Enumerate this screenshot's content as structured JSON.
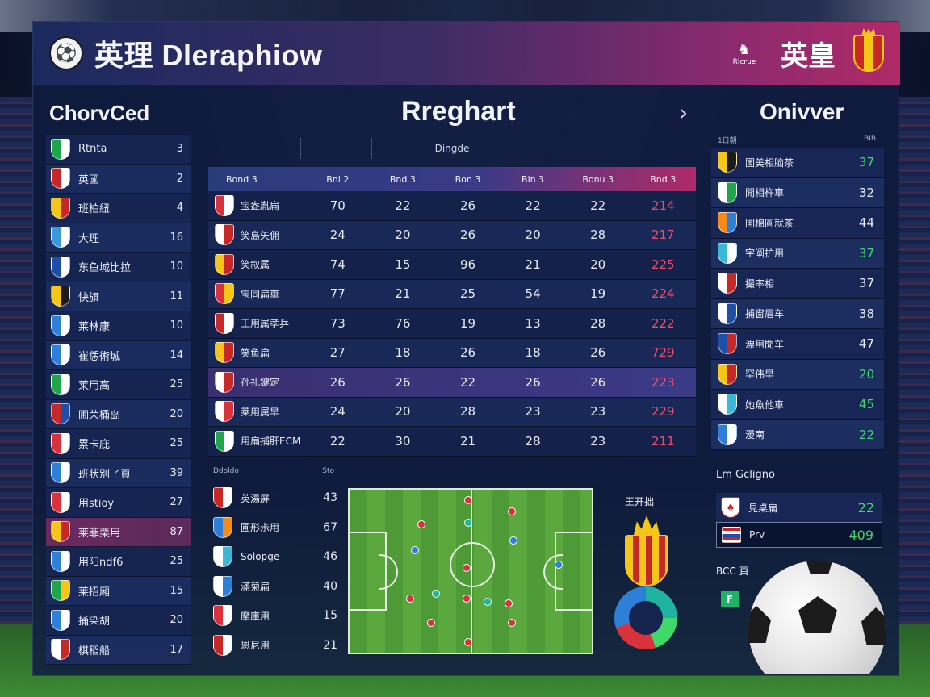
{
  "header": {
    "title": "英理 Dleraphiow",
    "right_badge": "Rlcrue",
    "right_title": "英皇"
  },
  "sections": {
    "left_title": "ChorvCed",
    "center_title": "Rreghart",
    "right_title": "Onivver"
  },
  "left_list": [
    {
      "name": "Rtnta",
      "value": "3",
      "crest": [
        "#1fa64a",
        "#ffffff"
      ]
    },
    {
      "name": "英國",
      "value": "2",
      "crest": [
        "#c62828",
        "#ffffff"
      ]
    },
    {
      "name": "班柏紐",
      "value": "4",
      "crest": [
        "#f5c518",
        "#c62828"
      ]
    },
    {
      "name": "大理",
      "value": "16",
      "crest": [
        "#3a9ad8",
        "#ffffff"
      ]
    },
    {
      "name": "东鱼城比拉",
      "value": "10",
      "crest": [
        "#1d4fa8",
        "#ffffff"
      ]
    },
    {
      "name": "快旗",
      "value": "11",
      "crest": [
        "#f5c518",
        "#1b1b1b"
      ]
    },
    {
      "name": "莱林康",
      "value": "10",
      "crest": [
        "#2d7fd8",
        "#ffffff"
      ]
    },
    {
      "name": "崔恁術城",
      "value": "14",
      "crest": [
        "#2d7fd8",
        "#ffffff"
      ]
    },
    {
      "name": "莱用高",
      "value": "25",
      "crest": [
        "#1fa64a",
        "#ffffff"
      ]
    },
    {
      "name": "圃荣桶岛",
      "value": "20",
      "crest": [
        "#c62828",
        "#1d4fa8"
      ]
    },
    {
      "name": "累卡庇",
      "value": "25",
      "crest": [
        "#d8323c",
        "#ffffff"
      ]
    },
    {
      "name": "班状別了頁",
      "value": "39",
      "crest": [
        "#2d7fd8",
        "#ffffff"
      ]
    },
    {
      "name": "用stioy",
      "value": "27",
      "crest": [
        "#d8323c",
        "#ffffff"
      ]
    },
    {
      "name": "莱菲栗用",
      "value": "87",
      "crest": [
        "#f5c518",
        "#c62828"
      ]
    },
    {
      "name": "用阳ndf6",
      "value": "25",
      "crest": [
        "#2d7fd8",
        "#ffffff"
      ]
    },
    {
      "name": "莱招厢",
      "value": "15",
      "crest": [
        "#1fa64a",
        "#f5c518"
      ]
    },
    {
      "name": "捅染胡",
      "value": "20",
      "crest": [
        "#2d7fd8",
        "#ffffff"
      ]
    },
    {
      "name": "棋稻船",
      "value": "17",
      "crest": [
        "#ffffff",
        "#c62828"
      ]
    }
  ],
  "center_table": {
    "sub_header": "Dingde",
    "columns": [
      "Bond 3",
      "Bnl 2",
      "Bnd 3",
      "Bon 3",
      "Bin 3",
      "Bonu 3",
      "Bnd 3"
    ],
    "rows": [
      {
        "team": "宝盎胤扁",
        "cells": [
          "70",
          "22",
          "26",
          "22",
          "22",
          "214"
        ],
        "crest": [
          "#d8323c",
          "#ffffff"
        ]
      },
      {
        "team": "笑島矢佣",
        "cells": [
          "24",
          "20",
          "26",
          "20",
          "28",
          "217"
        ],
        "crest": [
          "#ffffff",
          "#c62828"
        ]
      },
      {
        "team": "笑叙属",
        "cells": [
          "74",
          "15",
          "96",
          "21",
          "20",
          "225"
        ],
        "crest": [
          "#f5c518",
          "#c62828"
        ]
      },
      {
        "team": "宝同扁車",
        "cells": [
          "77",
          "21",
          "25",
          "54",
          "19",
          "224"
        ],
        "crest": [
          "#d8323c",
          "#f5c518"
        ]
      },
      {
        "team": "王用属孝乒",
        "cells": [
          "73",
          "76",
          "19",
          "13",
          "28",
          "222"
        ],
        "crest": [
          "#c62828",
          "#ffffff"
        ]
      },
      {
        "team": "笑鱼扁",
        "cells": [
          "27",
          "18",
          "26",
          "18",
          "26",
          "729"
        ],
        "crest": [
          "#f5c518",
          "#c62828"
        ]
      },
      {
        "team": "孙礼鍵定",
        "cells": [
          "26",
          "26",
          "22",
          "26",
          "26",
          "223"
        ],
        "crest": [
          "#ffffff",
          "#c62828"
        ]
      },
      {
        "team": "莱用属早",
        "cells": [
          "24",
          "20",
          "28",
          "23",
          "23",
          "229"
        ],
        "crest": [
          "#ffffff",
          "#d8323c"
        ]
      },
      {
        "team": "用扁捕肝ECM",
        "cells": [
          "22",
          "30",
          "21",
          "28",
          "23",
          "211"
        ],
        "crest": [
          "#1fa64a",
          "#ffffff"
        ]
      }
    ]
  },
  "right_list": {
    "head_left": "1日朝",
    "head_right": "BIB",
    "rows": [
      {
        "name": "圃美相脑茶",
        "value": "37",
        "green": true,
        "crest": [
          "#f5c518",
          "#1b1b1b"
        ]
      },
      {
        "name": "開相杵車",
        "value": "32",
        "green": false,
        "crest": [
          "#ffffff",
          "#1fa64a"
        ]
      },
      {
        "name": "圃棉圓就茶",
        "value": "44",
        "green": false,
        "crest": [
          "#f58a18",
          "#2d7fd8"
        ]
      },
      {
        "name": "宇阐护用",
        "value": "37",
        "green": true,
        "crest": [
          "#3ab8d8",
          "#ffffff"
        ]
      },
      {
        "name": "撮率相",
        "value": "37",
        "green": false,
        "crest": [
          "#ffffff",
          "#c62828"
        ]
      },
      {
        "name": "捕窗眉车",
        "value": "38",
        "green": false,
        "crest": [
          "#ffffff",
          "#1d4fa8"
        ]
      },
      {
        "name": "漂用閒车",
        "value": "47",
        "green": false,
        "crest": [
          "#1d4fa8",
          "#c62828"
        ]
      },
      {
        "name": "罕伟早",
        "value": "20",
        "green": true,
        "crest": [
          "#f5c518",
          "#c62828"
        ]
      },
      {
        "name": "她魚他車",
        "value": "45",
        "green": true,
        "crest": [
          "#ffffff",
          "#3ab8d8"
        ]
      },
      {
        "name": "漫南",
        "value": "22",
        "green": true,
        "crest": [
          "#2d7fd8",
          "#ffffff"
        ]
      }
    ]
  },
  "lower_table": {
    "head_left": "Ddoldo",
    "head_right": "Sto",
    "rows": [
      {
        "name": "英湯屏",
        "value": "43",
        "crest": [
          "#c62828",
          "#ffffff"
        ]
      },
      {
        "name": "圃形尗用",
        "value": "67",
        "crest": [
          "#2d7fd8",
          "#f58a18"
        ]
      },
      {
        "name": "Solopge",
        "value": "46",
        "crest": [
          "#ffffff",
          "#3ab8d8"
        ]
      },
      {
        "name": "滿菊扁",
        "value": "40",
        "crest": [
          "#ffffff",
          "#2d7fd8"
        ]
      },
      {
        "name": "摩庫用",
        "value": "15",
        "crest": [
          "#d8323c",
          "#ffffff"
        ]
      },
      {
        "name": "恩尼用",
        "value": "21",
        "crest": [
          "#c62828",
          "#ffffff"
        ]
      }
    ]
  },
  "trophy": {
    "title": "王开拙"
  },
  "right_lower": {
    "title": "Lm Gcligno",
    "rows": [
      {
        "name": "見桌扁",
        "value": "22"
      },
      {
        "name": "Prv",
        "value": "409"
      }
    ],
    "mini_title": "BCC 頁",
    "mini_icon_text": "F"
  }
}
